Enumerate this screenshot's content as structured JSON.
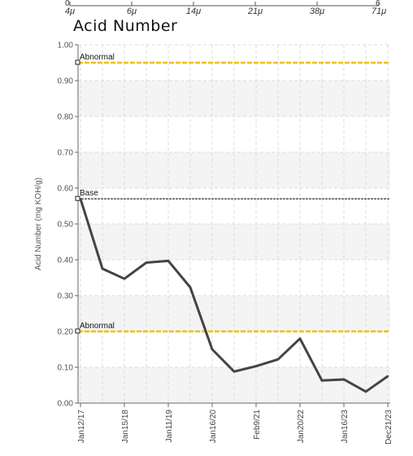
{
  "top_axis": {
    "ticks": [
      "4μ",
      "6μ",
      "14μ",
      "21μ",
      "38μ",
      "71μ"
    ],
    "left_end": "0",
    "right_end": "6"
  },
  "chart_data": {
    "type": "line",
    "title": "Acid Number",
    "ylabel": "Acid Number (mg KOH/g)",
    "xlabel": "",
    "ylim": [
      0,
      1.0
    ],
    "yticks": [
      "0.00",
      "0.10",
      "0.20",
      "0.30",
      "0.40",
      "0.50",
      "0.60",
      "0.70",
      "0.80",
      "0.90",
      "1.00"
    ],
    "xtick_labels": [
      "Jan12/17",
      "Jan15/18",
      "Jan11/19",
      "Jan16/20",
      "Feb9/21",
      "Jan20/22",
      "Jan16/23",
      "Dec21/23"
    ],
    "grid": true,
    "series": [
      {
        "values": [
          0.57,
          0.375,
          0.347,
          0.392,
          0.397,
          0.323,
          0.15,
          0.088,
          0.103,
          0.122,
          0.18,
          0.063,
          0.066,
          0.032,
          0.075
        ]
      }
    ],
    "thresholds": [
      {
        "label": "Abnormal",
        "value": 0.95,
        "color": "#f0c000"
      },
      {
        "label": "Base",
        "value": 0.57,
        "color": "#444444"
      },
      {
        "label": "Abnormal",
        "value": 0.2,
        "color": "#f0c000"
      }
    ],
    "line_color": "#444444"
  }
}
